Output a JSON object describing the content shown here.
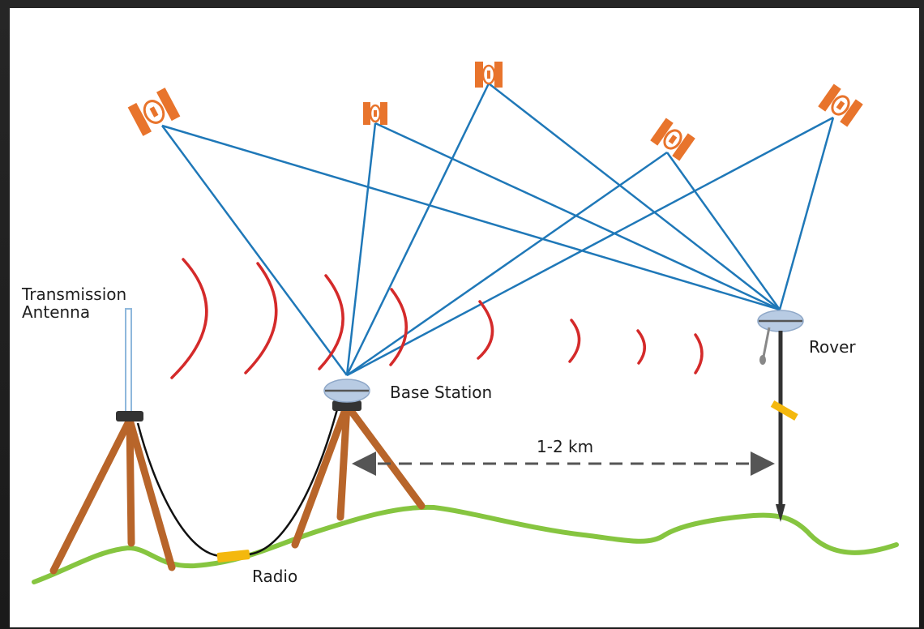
{
  "diagram": {
    "labels": {
      "transmission_antenna_line1": "Transmission",
      "transmission_antenna_line2": "Antenna",
      "base_station": "Base Station",
      "rover": "Rover",
      "radio": "Radio",
      "distance": "1-2 km"
    },
    "colors": {
      "signal_line": "#1f78b8",
      "radio_wave": "#d42a2a",
      "satellite": "#e8742c",
      "tripod_leg": "#b8652a",
      "ground": "#86c540",
      "radio_box": "#f4b80e",
      "dish": "#b8cbe3",
      "background": "#ffffff",
      "frame": "#1f1f1f"
    },
    "icons": [
      "satellite-icon",
      "gnss-dish-icon",
      "tripod-icon",
      "antenna-mast-icon",
      "radio-box-icon",
      "rover-pole-icon"
    ]
  }
}
